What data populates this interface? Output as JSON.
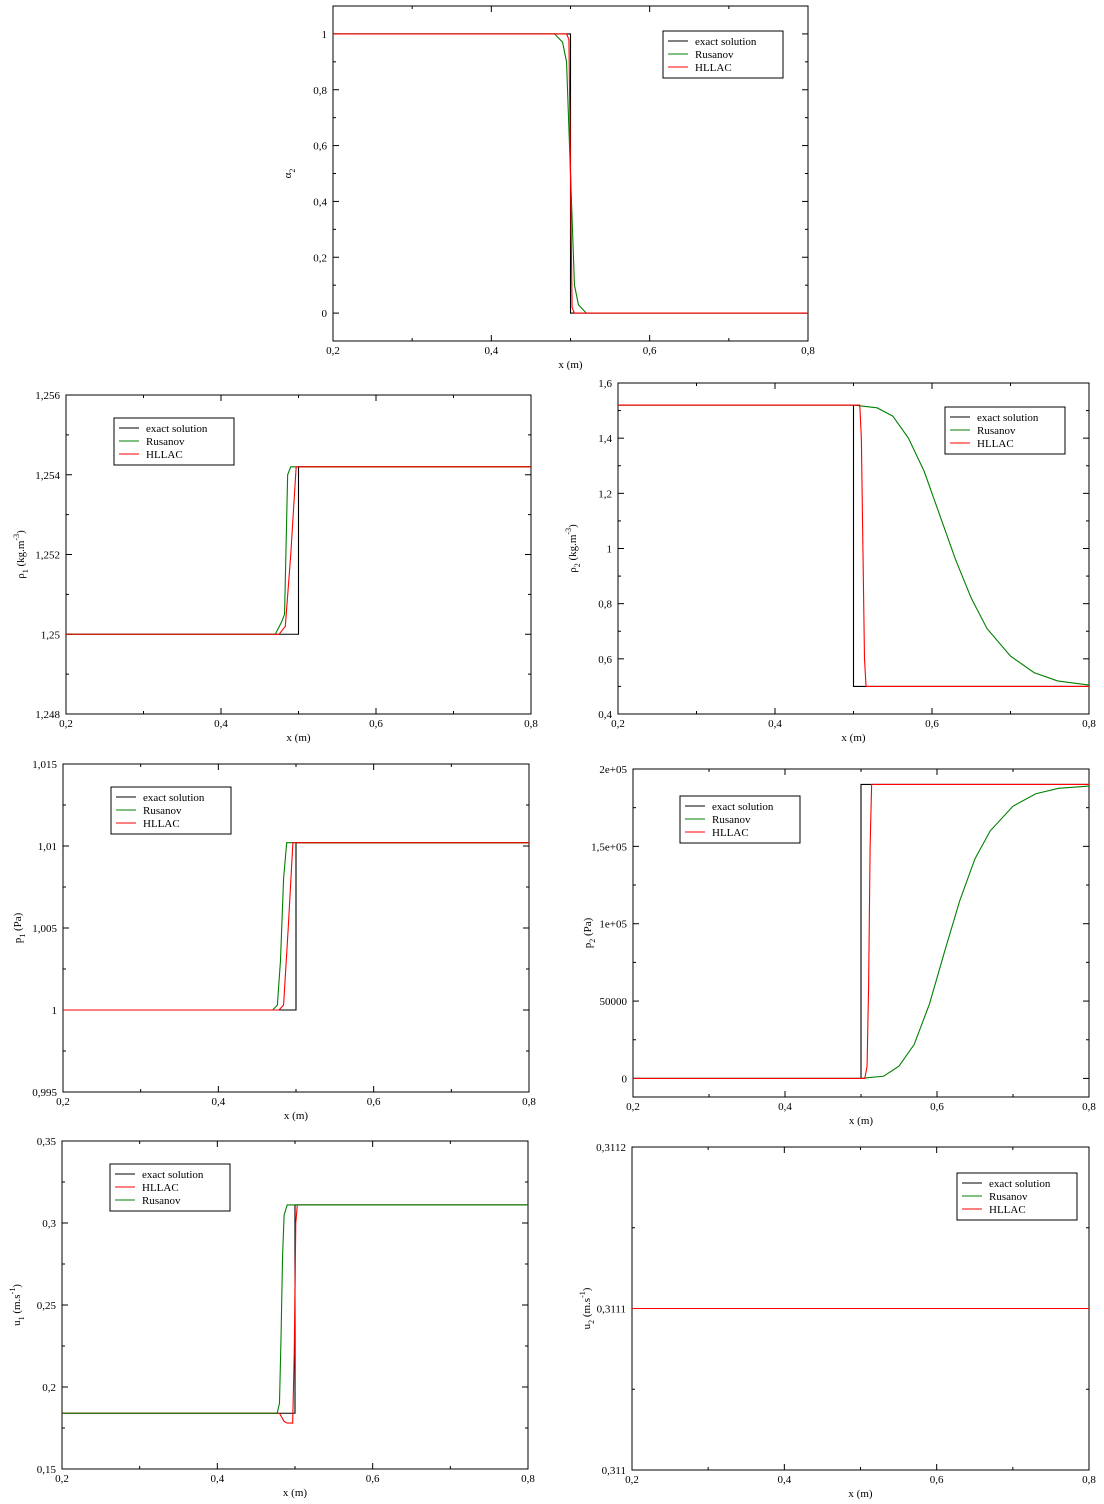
{
  "chart_data": [
    {
      "id": "alpha2",
      "type": "line",
      "xlabel": "x (m)",
      "ylabel": {
        "base": "α",
        "sub": "2",
        "rest": ""
      },
      "xlim": [
        0.2,
        0.8
      ],
      "ylim": [
        -0.1,
        1.1
      ],
      "xticks": [
        {
          "v": 0.2,
          "t": "0,2"
        },
        {
          "v": 0.4,
          "t": "0,4"
        },
        {
          "v": 0.6,
          "t": "0,6"
        },
        {
          "v": 0.8,
          "t": "0,8"
        }
      ],
      "yticks": [
        {
          "v": 0,
          "t": "0"
        },
        {
          "v": 0.2,
          "t": "0,2"
        },
        {
          "v": 0.4,
          "t": "0,4"
        },
        {
          "v": 0.6,
          "t": "0,6"
        },
        {
          "v": 0.8,
          "t": "0,8"
        },
        {
          "v": 1,
          "t": "1"
        }
      ],
      "legend": "top-right",
      "series": [
        {
          "name": "exact solution",
          "color": "#000000",
          "x": [
            0.2,
            0.5,
            0.5,
            0.8
          ],
          "y": [
            1,
            1,
            0,
            0
          ]
        },
        {
          "name": "Rusanov",
          "color": "#008000",
          "x": [
            0.2,
            0.48,
            0.49,
            0.495,
            0.5,
            0.505,
            0.51,
            0.52,
            0.8
          ],
          "y": [
            1,
            1,
            0.97,
            0.9,
            0.5,
            0.1,
            0.03,
            0.0,
            0
          ]
        },
        {
          "name": "HLLAC",
          "color": "#ff0000",
          "x": [
            0.2,
            0.495,
            0.498,
            0.5,
            0.502,
            0.505,
            0.8
          ],
          "y": [
            1,
            1,
            0.98,
            0.5,
            0.02,
            0,
            0
          ]
        }
      ]
    },
    {
      "id": "rho1",
      "type": "line",
      "xlabel": "x (m)",
      "ylabel": {
        "base": "ρ",
        "sub": "1",
        "rest": " (kg.m",
        "sup": "-3",
        "end": ")"
      },
      "xlim": [
        0.2,
        0.8
      ],
      "ylim": [
        1.248,
        1.256
      ],
      "xticks": [
        {
          "v": 0.2,
          "t": "0,2"
        },
        {
          "v": 0.4,
          "t": "0,4"
        },
        {
          "v": 0.6,
          "t": "0,6"
        },
        {
          "v": 0.8,
          "t": "0,8"
        }
      ],
      "yticks": [
        {
          "v": 1.248,
          "t": "1,248"
        },
        {
          "v": 1.25,
          "t": "1,25"
        },
        {
          "v": 1.252,
          "t": "1,252"
        },
        {
          "v": 1.254,
          "t": "1,254"
        },
        {
          "v": 1.256,
          "t": "1,256"
        }
      ],
      "legend": "top-left",
      "series": [
        {
          "name": "exact solution",
          "color": "#000000",
          "x": [
            0.2,
            0.5,
            0.5,
            0.8
          ],
          "y": [
            1.25,
            1.25,
            1.2542,
            1.2542
          ]
        },
        {
          "name": "Rusanov",
          "color": "#008000",
          "x": [
            0.2,
            0.47,
            0.478,
            0.482,
            0.486,
            0.49,
            0.8
          ],
          "y": [
            1.25,
            1.25,
            1.2503,
            1.2505,
            1.254,
            1.2542,
            1.2542
          ]
        },
        {
          "name": "HLLAC",
          "color": "#ff0000",
          "x": [
            0.2,
            0.475,
            0.483,
            0.49,
            0.497,
            0.8
          ],
          "y": [
            1.25,
            1.25,
            1.2502,
            1.252,
            1.2542,
            1.2542
          ]
        }
      ]
    },
    {
      "id": "rho2",
      "type": "line",
      "xlabel": "x (m)",
      "ylabel": {
        "base": "ρ",
        "sub": "2",
        "rest": " (kg.m",
        "sup": "-3",
        "end": ")"
      },
      "xlim": [
        0.2,
        0.8
      ],
      "ylim": [
        0.4,
        1.6
      ],
      "xticks": [
        {
          "v": 0.2,
          "t": "0,2"
        },
        {
          "v": 0.4,
          "t": "0,4"
        },
        {
          "v": 0.6,
          "t": "0,6"
        },
        {
          "v": 0.8,
          "t": "0,8"
        }
      ],
      "yticks": [
        {
          "v": 0.4,
          "t": "0,4"
        },
        {
          "v": 0.6,
          "t": "0,6"
        },
        {
          "v": 0.8,
          "t": "0,8"
        },
        {
          "v": 1,
          "t": "1"
        },
        {
          "v": 1.2,
          "t": "1,2"
        },
        {
          "v": 1.4,
          "t": "1,4"
        },
        {
          "v": 1.6,
          "t": "1,6"
        }
      ],
      "legend": "top-right",
      "series": [
        {
          "name": "exact solution",
          "color": "#000000",
          "x": [
            0.2,
            0.5,
            0.5,
            0.8
          ],
          "y": [
            1.52,
            1.52,
            0.5,
            0.5
          ]
        },
        {
          "name": "Rusanov",
          "color": "#008000",
          "x": [
            0.2,
            0.5,
            0.53,
            0.55,
            0.57,
            0.59,
            0.61,
            0.63,
            0.65,
            0.67,
            0.7,
            0.73,
            0.76,
            0.8
          ],
          "y": [
            1.52,
            1.52,
            1.51,
            1.48,
            1.4,
            1.28,
            1.12,
            0.96,
            0.82,
            0.71,
            0.61,
            0.55,
            0.52,
            0.505
          ]
        },
        {
          "name": "HLLAC",
          "color": "#ff0000",
          "x": [
            0.2,
            0.508,
            0.51,
            0.512,
            0.514,
            0.516,
            0.8
          ],
          "y": [
            1.52,
            1.52,
            1.4,
            1.0,
            0.6,
            0.5,
            0.5
          ]
        }
      ]
    },
    {
      "id": "p1",
      "type": "line",
      "xlabel": "x (m)",
      "ylabel": {
        "base": "p",
        "sub": "1",
        "rest": " (Pa)"
      },
      "xlim": [
        0.2,
        0.8
      ],
      "ylim": [
        0.995,
        1.015
      ],
      "xticks": [
        {
          "v": 0.2,
          "t": "0,2"
        },
        {
          "v": 0.4,
          "t": "0,4"
        },
        {
          "v": 0.6,
          "t": "0,6"
        },
        {
          "v": 0.8,
          "t": "0,8"
        }
      ],
      "yticks": [
        {
          "v": 0.995,
          "t": "0,995"
        },
        {
          "v": 1,
          "t": "1"
        },
        {
          "v": 1.005,
          "t": "1,005"
        },
        {
          "v": 1.01,
          "t": "1,01"
        },
        {
          "v": 1.015,
          "t": "1,015"
        }
      ],
      "legend": "top-left",
      "series": [
        {
          "name": "exact solution",
          "color": "#000000",
          "x": [
            0.2,
            0.5,
            0.5,
            0.8
          ],
          "y": [
            1.0,
            1.0,
            1.0102,
            1.0102
          ]
        },
        {
          "name": "Rusanov",
          "color": "#008000",
          "x": [
            0.2,
            0.47,
            0.476,
            0.48,
            0.484,
            0.488,
            0.8
          ],
          "y": [
            1.0,
            1.0,
            1.0003,
            1.003,
            1.008,
            1.0102,
            1.0102
          ]
        },
        {
          "name": "HLLAC",
          "color": "#ff0000",
          "x": [
            0.2,
            0.478,
            0.484,
            0.49,
            0.496,
            0.8
          ],
          "y": [
            1.0,
            1.0,
            1.0003,
            1.005,
            1.0102,
            1.0102
          ]
        }
      ]
    },
    {
      "id": "p2",
      "type": "line",
      "xlabel": "x (m)",
      "ylabel": {
        "base": "p",
        "sub": "2",
        "rest": " (Pa)"
      },
      "xlim": [
        0.2,
        0.8
      ],
      "ylim": [
        -12000,
        200000
      ],
      "xticks": [
        {
          "v": 0.2,
          "t": "0,2"
        },
        {
          "v": 0.4,
          "t": "0,4"
        },
        {
          "v": 0.6,
          "t": "0,6"
        },
        {
          "v": 0.8,
          "t": "0,8"
        }
      ],
      "yticks": [
        {
          "v": 0,
          "t": "0"
        },
        {
          "v": 50000,
          "t": "50000"
        },
        {
          "v": 100000,
          "t": "1e+05"
        },
        {
          "v": 150000,
          "t": "1,5e+05"
        },
        {
          "v": 200000,
          "t": "2e+05"
        }
      ],
      "legend": "top-left",
      "series": [
        {
          "name": "exact solution",
          "color": "#000000",
          "x": [
            0.2,
            0.5,
            0.5,
            0.8
          ],
          "y": [
            0,
            0,
            190000,
            190000
          ]
        },
        {
          "name": "Rusanov",
          "color": "#008000",
          "x": [
            0.2,
            0.5,
            0.53,
            0.55,
            0.57,
            0.59,
            0.61,
            0.63,
            0.65,
            0.67,
            0.7,
            0.73,
            0.76,
            0.8
          ],
          "y": [
            0,
            0,
            1500,
            8000,
            22000,
            48000,
            82000,
            115000,
            142000,
            160000,
            176000,
            184000,
            187500,
            189000
          ]
        },
        {
          "name": "HLLAC",
          "color": "#ff0000",
          "x": [
            0.2,
            0.505,
            0.508,
            0.51,
            0.512,
            0.514,
            0.8
          ],
          "y": [
            0,
            0,
            8000,
            60000,
            150000,
            190000,
            190000
          ]
        }
      ]
    },
    {
      "id": "u1",
      "type": "line",
      "xlabel": "x (m)",
      "ylabel": {
        "base": "u",
        "sub": "1",
        "rest": " (m.s",
        "sup": "-1",
        "end": ")"
      },
      "xlim": [
        0.2,
        0.8
      ],
      "ylim": [
        0.15,
        0.35
      ],
      "xticks": [
        {
          "v": 0.2,
          "t": "0,2"
        },
        {
          "v": 0.4,
          "t": "0,4"
        },
        {
          "v": 0.6,
          "t": "0,6"
        },
        {
          "v": 0.8,
          "t": "0,8"
        }
      ],
      "yticks": [
        {
          "v": 0.15,
          "t": "0,15"
        },
        {
          "v": 0.2,
          "t": "0,2"
        },
        {
          "v": 0.25,
          "t": "0,25"
        },
        {
          "v": 0.3,
          "t": "0,3"
        },
        {
          "v": 0.35,
          "t": "0,35"
        }
      ],
      "legend": "top-left",
      "series": [
        {
          "name": "exact solution",
          "color": "#000000",
          "x": [
            0.2,
            0.5,
            0.5,
            0.8
          ],
          "y": [
            0.184,
            0.184,
            0.311,
            0.311
          ]
        },
        {
          "name": "HLLAC",
          "color": "#ff0000",
          "x": [
            0.2,
            0.48,
            0.486,
            0.49,
            0.497,
            0.499,
            0.501,
            0.503,
            0.8
          ],
          "y": [
            0.184,
            0.184,
            0.179,
            0.178,
            0.178,
            0.22,
            0.3,
            0.311,
            0.311
          ]
        },
        {
          "name": "Rusanov",
          "color": "#008000",
          "x": [
            0.2,
            0.477,
            0.48,
            0.482,
            0.484,
            0.486,
            0.49,
            0.8
          ],
          "y": [
            0.184,
            0.184,
            0.19,
            0.23,
            0.28,
            0.305,
            0.311,
            0.311
          ]
        }
      ]
    },
    {
      "id": "u2",
      "type": "line",
      "xlabel": "x (m)",
      "ylabel": {
        "base": "u",
        "sub": "2",
        "rest": " (m.s",
        "sup": "-1",
        "end": ")"
      },
      "xlim": [
        0.2,
        0.8
      ],
      "ylim": [
        0.311,
        0.3112
      ],
      "xticks": [
        {
          "v": 0.2,
          "t": "0,2"
        },
        {
          "v": 0.4,
          "t": "0,4"
        },
        {
          "v": 0.6,
          "t": "0,6"
        },
        {
          "v": 0.8,
          "t": "0,8"
        }
      ],
      "yticks": [
        {
          "v": 0.311,
          "t": "0,311"
        },
        {
          "v": 0.3111,
          "t": "0,3111"
        },
        {
          "v": 0.3112,
          "t": "0,3112"
        }
      ],
      "legend": "top-right",
      "series": [
        {
          "name": "exact solution",
          "color": "#000000",
          "x": [
            0.2,
            0.8
          ],
          "y": [
            0.3111,
            0.3111
          ]
        },
        {
          "name": "Rusanov",
          "color": "#008000",
          "x": [
            0.2,
            0.8
          ],
          "y": [
            0.3111,
            0.3111
          ]
        },
        {
          "name": "HLLAC",
          "color": "#ff0000",
          "x": [
            0.2,
            0.8
          ],
          "y": [
            0.3111,
            0.3111
          ]
        }
      ]
    }
  ]
}
